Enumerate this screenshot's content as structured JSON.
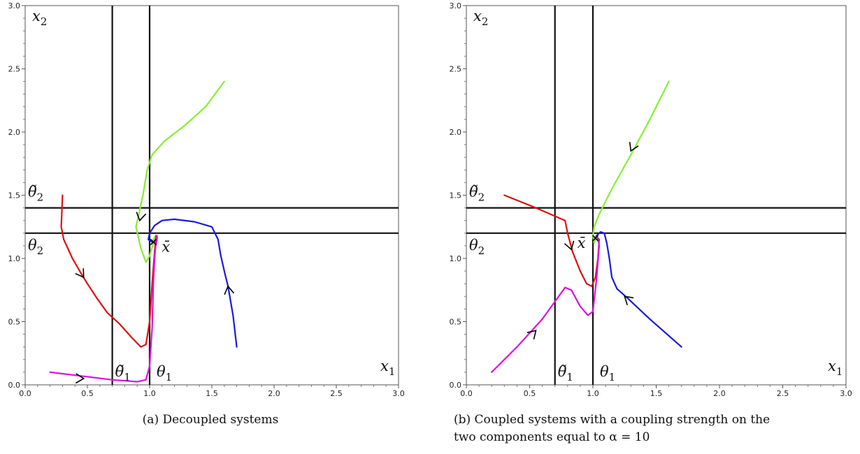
{
  "chart_data": [
    {
      "type": "line",
      "caption": "(a) Decoupled systems",
      "xlim": [
        0,
        3
      ],
      "ylim": [
        0,
        3
      ],
      "x_ticks": [
        "0.0",
        "0.5",
        "1.0",
        "1.5",
        "2.0",
        "2.5",
        "3.0"
      ],
      "y_ticks": [
        "0.0",
        "0.5",
        "1.0",
        "1.5",
        "2.0",
        "2.5",
        "3.0"
      ],
      "thresholds": {
        "theta1": 1.0,
        "theta1_tilde": 0.7,
        "theta2": 1.2,
        "theta2_tilde": 1.4
      },
      "labels": {
        "x_axis": "x",
        "x_axis_sub": "1",
        "y_axis": "x",
        "y_axis_sub": "2",
        "theta1": "θ",
        "theta1_sub": "1",
        "theta1_tilde": "θ̃",
        "theta1_tilde_sub": "1",
        "theta2": "θ",
        "theta2_sub": "2",
        "theta2_tilde": "θ̃",
        "theta2_tilde_sub": "2",
        "equilibrium": "x̄"
      },
      "equilibrium": [
        1.03,
        1.13
      ],
      "series": [
        {
          "color": "#dd1111",
          "x": [
            0.3,
            0.29,
            0.31,
            0.38,
            0.45,
            0.5,
            0.58,
            0.66,
            0.76,
            0.86,
            0.93,
            0.97,
            1.0,
            1.02,
            1.04,
            1.05,
            1.05,
            1.04
          ],
          "y": [
            1.5,
            1.25,
            1.15,
            1.0,
            0.88,
            0.8,
            0.68,
            0.57,
            0.48,
            0.37,
            0.3,
            0.32,
            0.5,
            0.8,
            1.05,
            1.17,
            1.18,
            1.14
          ]
        },
        {
          "color": "#88ee33",
          "x": [
            1.6,
            1.45,
            1.28,
            1.12,
            1.02,
            0.98,
            0.95,
            0.92,
            0.89,
            0.93,
            0.97,
            1.0,
            1.03,
            1.04,
            1.02
          ],
          "y": [
            2.4,
            2.2,
            2.05,
            1.93,
            1.82,
            1.7,
            1.52,
            1.38,
            1.25,
            1.08,
            0.97,
            1.02,
            1.12,
            1.17,
            1.13
          ]
        },
        {
          "color": "#1a1add",
          "x": [
            1.7,
            1.67,
            1.63,
            1.6,
            1.57,
            1.55,
            1.5,
            1.36,
            1.2,
            1.1,
            1.04,
            1.0,
            0.99,
            1.02
          ],
          "y": [
            0.3,
            0.55,
            0.78,
            0.9,
            1.03,
            1.15,
            1.25,
            1.29,
            1.31,
            1.3,
            1.26,
            1.2,
            1.15,
            1.13
          ]
        },
        {
          "color": "#dd11dd",
          "x": [
            0.2,
            0.45,
            0.7,
            0.9,
            0.97,
            1.0,
            1.02,
            1.03,
            1.04,
            1.05,
            1.06,
            1.06,
            1.05,
            1.04
          ],
          "y": [
            0.1,
            0.07,
            0.04,
            0.025,
            0.04,
            0.15,
            0.45,
            0.8,
            1.0,
            1.12,
            1.18,
            1.16,
            1.1,
            1.13
          ]
        }
      ],
      "arrows": [
        {
          "color": "#000000",
          "x": 0.47,
          "y": 0.05,
          "dx": 1,
          "dy": -0.02
        },
        {
          "color": "#000000",
          "x": 0.47,
          "y": 0.85,
          "dx": 0.6,
          "dy": -0.9
        },
        {
          "color": "#000000",
          "x": 0.92,
          "y": 1.3,
          "dx": -0.2,
          "dy": -1
        },
        {
          "color": "#000000",
          "x": 1.63,
          "y": 0.78,
          "dx": -0.15,
          "dy": 1
        }
      ]
    },
    {
      "type": "line",
      "caption": "(b) Coupled systems with a coupling strength on the two components equal to α = 10",
      "caption_lines": [
        "(b) Coupled systems with a coupling strength on the",
        "two components equal to α = 10"
      ],
      "xlim": [
        0,
        3
      ],
      "ylim": [
        0,
        3
      ],
      "x_ticks": [
        "0.0",
        "0.5",
        "1.0",
        "1.5",
        "2.0",
        "2.5",
        "3.0"
      ],
      "y_ticks": [
        "0.0",
        "0.5",
        "1.0",
        "1.5",
        "2.0",
        "2.5",
        "3.0"
      ],
      "thresholds": {
        "theta1": 1.0,
        "theta1_tilde": 0.7,
        "theta2": 1.2,
        "theta2_tilde": 1.4
      },
      "labels": {
        "x_axis": "x",
        "x_axis_sub": "1",
        "y_axis": "x",
        "y_axis_sub": "2",
        "theta1": "θ",
        "theta1_sub": "1",
        "theta1_tilde": "θ̃",
        "theta1_tilde_sub": "1",
        "theta2": "θ",
        "theta2_sub": "2",
        "theta2_tilde": "θ̃",
        "theta2_tilde_sub": "2",
        "equilibrium": "x̄"
      },
      "equilibrium": [
        1.02,
        1.16
      ],
      "series": [
        {
          "color": "#dd1111",
          "x": [
            0.3,
            0.55,
            0.78,
            0.8,
            0.84,
            0.9,
            0.95,
            0.99,
            1.02,
            1.04,
            1.05,
            1.03
          ],
          "y": [
            1.5,
            1.4,
            1.3,
            1.2,
            1.05,
            0.9,
            0.8,
            0.78,
            0.85,
            1.0,
            1.15,
            1.17
          ]
        },
        {
          "color": "#88ee33",
          "x": [
            1.6,
            1.45,
            1.3,
            1.15,
            1.05,
            1.01,
            1.0,
            1.01,
            1.02
          ],
          "y": [
            2.4,
            2.1,
            1.82,
            1.55,
            1.35,
            1.25,
            1.18,
            1.12,
            1.15
          ]
        },
        {
          "color": "#1a1add",
          "x": [
            1.7,
            1.45,
            1.28,
            1.19,
            1.15,
            1.13,
            1.11,
            1.09,
            1.06,
            1.03,
            1.02
          ],
          "y": [
            0.3,
            0.52,
            0.68,
            0.76,
            0.85,
            1.0,
            1.12,
            1.2,
            1.21,
            1.18,
            1.16
          ]
        },
        {
          "color": "#dd11dd",
          "x": [
            0.2,
            0.4,
            0.6,
            0.78,
            0.83,
            0.9,
            0.96,
            1.0,
            1.03,
            1.05,
            1.04
          ],
          "y": [
            0.1,
            0.3,
            0.52,
            0.77,
            0.75,
            0.62,
            0.55,
            0.58,
            0.85,
            1.1,
            1.16
          ]
        }
      ],
      "arrows": [
        {
          "color": "#000000",
          "x": 0.55,
          "y": 0.43,
          "dx": 0.7,
          "dy": 0.7
        },
        {
          "color": "#000000",
          "x": 0.83,
          "y": 1.07,
          "dx": 0.3,
          "dy": -1
        },
        {
          "color": "#000000",
          "x": 1.3,
          "y": 1.85,
          "dx": -0.45,
          "dy": -1
        },
        {
          "color": "#000000",
          "x": 1.25,
          "y": 0.7,
          "dx": -0.7,
          "dy": 0.6
        }
      ]
    }
  ]
}
